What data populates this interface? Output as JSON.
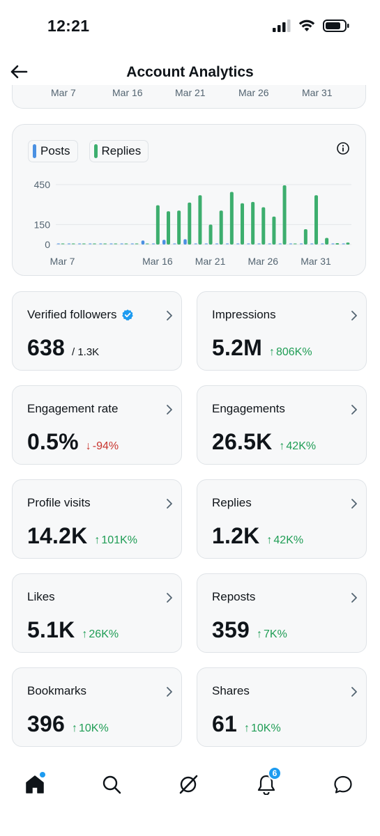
{
  "status_bar": {
    "time": "12:21"
  },
  "header": {
    "title": "Account Analytics"
  },
  "partial_chart": {
    "x_labels": [
      "Mar 7",
      "Mar 16",
      "Mar 21",
      "Mar 26",
      "Mar 31"
    ]
  },
  "chart_data": {
    "type": "bar",
    "legend": [
      "Posts",
      "Replies"
    ],
    "x_tick_labels": [
      "Mar 7",
      "Mar 16",
      "Mar 21",
      "Mar 26",
      "Mar 31"
    ],
    "y_tick_labels": [
      "450",
      "150",
      "0"
    ],
    "ylim": [
      0,
      450
    ],
    "colors": {
      "Posts": "#4a90e2",
      "Replies": "#3dae6e"
    },
    "categories": [
      "Mar 7",
      "Mar 8",
      "Mar 9",
      "Mar 10",
      "Mar 11",
      "Mar 12",
      "Mar 13",
      "Mar 14",
      "Mar 15",
      "Mar 16",
      "Mar 17",
      "Mar 18",
      "Mar 19",
      "Mar 20",
      "Mar 21",
      "Mar 22",
      "Mar 23",
      "Mar 24",
      "Mar 25",
      "Mar 26",
      "Mar 27",
      "Mar 28",
      "Mar 29",
      "Mar 30",
      "Mar 31",
      "Apr 1",
      "Apr 2",
      "Apr 3"
    ],
    "series": [
      {
        "name": "Posts",
        "values": [
          0,
          0,
          0,
          0,
          0,
          0,
          0,
          0,
          30,
          0,
          35,
          0,
          40,
          0,
          0,
          0,
          0,
          0,
          0,
          0,
          0,
          0,
          0,
          0,
          0,
          0,
          0,
          0
        ]
      },
      {
        "name": "Replies",
        "values": [
          0,
          0,
          0,
          0,
          0,
          0,
          0,
          0,
          0,
          295,
          250,
          255,
          315,
          370,
          150,
          255,
          395,
          310,
          320,
          280,
          210,
          445,
          0,
          115,
          370,
          50,
          10,
          15
        ]
      }
    ]
  },
  "stats": [
    {
      "label": "Verified followers",
      "value": "638",
      "sub": "/ 1.3K",
      "verified": true
    },
    {
      "label": "Impressions",
      "value": "5.2M",
      "change": "806K%",
      "direction": "up"
    },
    {
      "label": "Engagement rate",
      "value": "0.5%",
      "change": "-94%",
      "direction": "down"
    },
    {
      "label": "Engagements",
      "value": "26.5K",
      "change": "42K%",
      "direction": "up"
    },
    {
      "label": "Profile visits",
      "value": "14.2K",
      "change": "101K%",
      "direction": "up"
    },
    {
      "label": "Replies",
      "value": "1.2K",
      "change": "42K%",
      "direction": "up"
    },
    {
      "label": "Likes",
      "value": "5.1K",
      "change": "26K%",
      "direction": "up"
    },
    {
      "label": "Reposts",
      "value": "359",
      "change": "7K%",
      "direction": "up"
    },
    {
      "label": "Bookmarks",
      "value": "396",
      "change": "10K%",
      "direction": "up"
    },
    {
      "label": "Shares",
      "value": "61",
      "change": "10K%",
      "direction": "up"
    }
  ],
  "nav": {
    "items": [
      "home-icon",
      "search-icon",
      "grok-icon",
      "notifications-icon",
      "messages-icon"
    ],
    "notification_count": "6"
  }
}
